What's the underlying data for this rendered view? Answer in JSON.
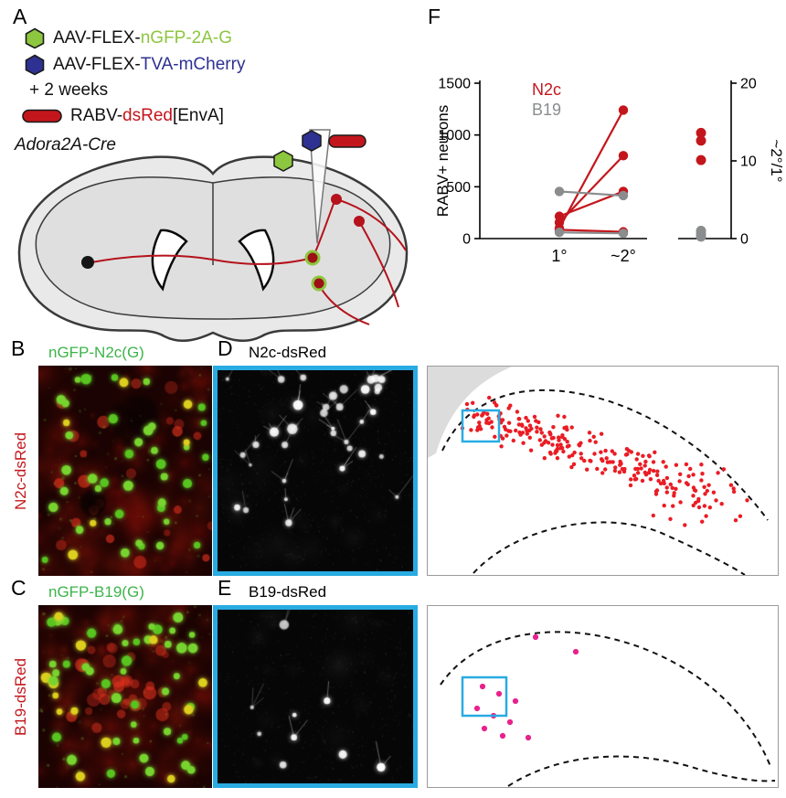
{
  "colors": {
    "aav_green": "#8dc63f",
    "aav_blue": "#2e3192",
    "dsred_red": "#c3161c",
    "b19_gray": "#8a8c8e",
    "inset_cyan": "#29abe2",
    "map_dot_red": "#ea1c24",
    "map_dot_magenta": "#e8218c",
    "title_green": "#3cb44a"
  },
  "panel_a": {
    "label": "A",
    "legend": [
      {
        "icon": "hexagon-green",
        "prefix": "AAV-FLEX-",
        "highlight": "nGFP-2A-G"
      },
      {
        "icon": "hexagon-blue",
        "prefix": "AAV-FLEX-",
        "highlight": "TVA-mCherry"
      }
    ],
    "wait_text": "+ 2 weeks",
    "rabv": {
      "icon": "capsule-red",
      "prefix": "RABV-",
      "highlight": "dsRed",
      "suffix": "[EnvA]"
    },
    "mouse_line": "Adora2A-Cre"
  },
  "panel_f": {
    "label": "F"
  },
  "chart_data": {
    "type": "paired-line-scatter",
    "title": "",
    "left_axis": {
      "label": "RABV+ neurons",
      "ticks": [
        0,
        500,
        1000,
        1500
      ],
      "range": [
        0,
        1500
      ]
    },
    "right_axis": {
      "label": "~2°/1°",
      "ticks": [
        0,
        10,
        20
      ],
      "range": [
        0,
        20
      ]
    },
    "x_categories": [
      "1°",
      "~2°"
    ],
    "series": [
      {
        "name": "N2c",
        "color": "#c3161c",
        "pairs": [
          [
            100,
            1240
          ],
          [
            155,
            800
          ],
          [
            215,
            455
          ],
          [
            85,
            65
          ]
        ]
      },
      {
        "name": "B19",
        "color": "#8a8c8e",
        "pairs": [
          [
            455,
            415
          ],
          [
            60,
            50
          ]
        ]
      }
    ],
    "ratio_points": [
      {
        "name": "N2c",
        "color": "#c3161c",
        "values": [
          13.6,
          12.6,
          10.1
        ]
      },
      {
        "name": "B19",
        "color": "#8a8c8e",
        "values": [
          1.0,
          0.6,
          0.25
        ]
      }
    ],
    "legend_position": "top-left",
    "grid": false
  },
  "panel_b": {
    "label": "B",
    "title": "nGFP-N2c(G)",
    "side_label": "N2c-dsRed"
  },
  "panel_c": {
    "label": "C",
    "title": "nGFP-B19(G)",
    "side_label": "B19-dsRed"
  },
  "panel_d": {
    "label": "D",
    "title": "N2c-dsRed"
  },
  "panel_e": {
    "label": "E",
    "title": "B19-dsRed",
    "map_points": [
      [
        118,
        34
      ],
      [
        162,
        50
      ],
      [
        60,
        88
      ],
      [
        78,
        96
      ],
      [
        96,
        104
      ],
      [
        54,
        112
      ],
      [
        72,
        120
      ],
      [
        90,
        127
      ],
      [
        62,
        134
      ],
      [
        82,
        142
      ],
      [
        110,
        144
      ]
    ]
  }
}
